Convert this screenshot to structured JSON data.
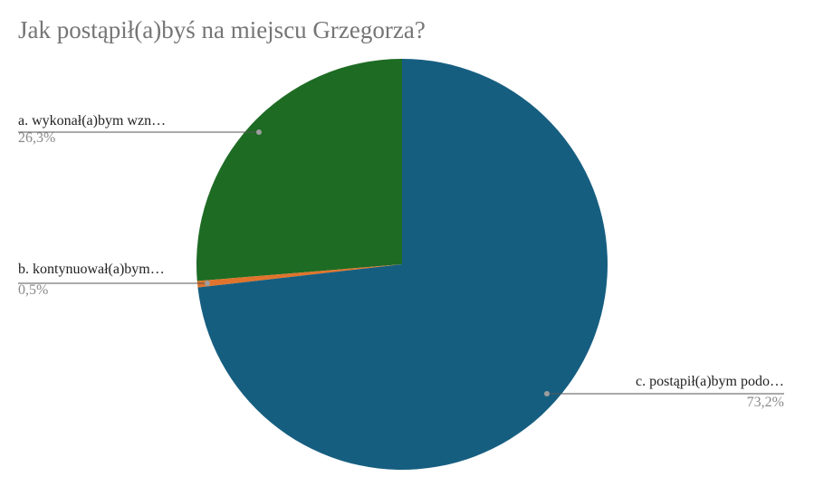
{
  "chart_data": {
    "type": "pie",
    "title": "Jak postąpił(a)byś na miejscu Grzegorza?",
    "categories": [
      "a. wykonał(a)bym wzn…",
      "b. kontynuował(a)bym…",
      "c. postąpił(a)bym podo…"
    ],
    "values": [
      26.3,
      0.5,
      73.2
    ],
    "value_labels": [
      "26,3%",
      "0,5%",
      "73,2%"
    ],
    "colors": [
      "#1e6b24",
      "#e0742c",
      "#165e80"
    ]
  }
}
